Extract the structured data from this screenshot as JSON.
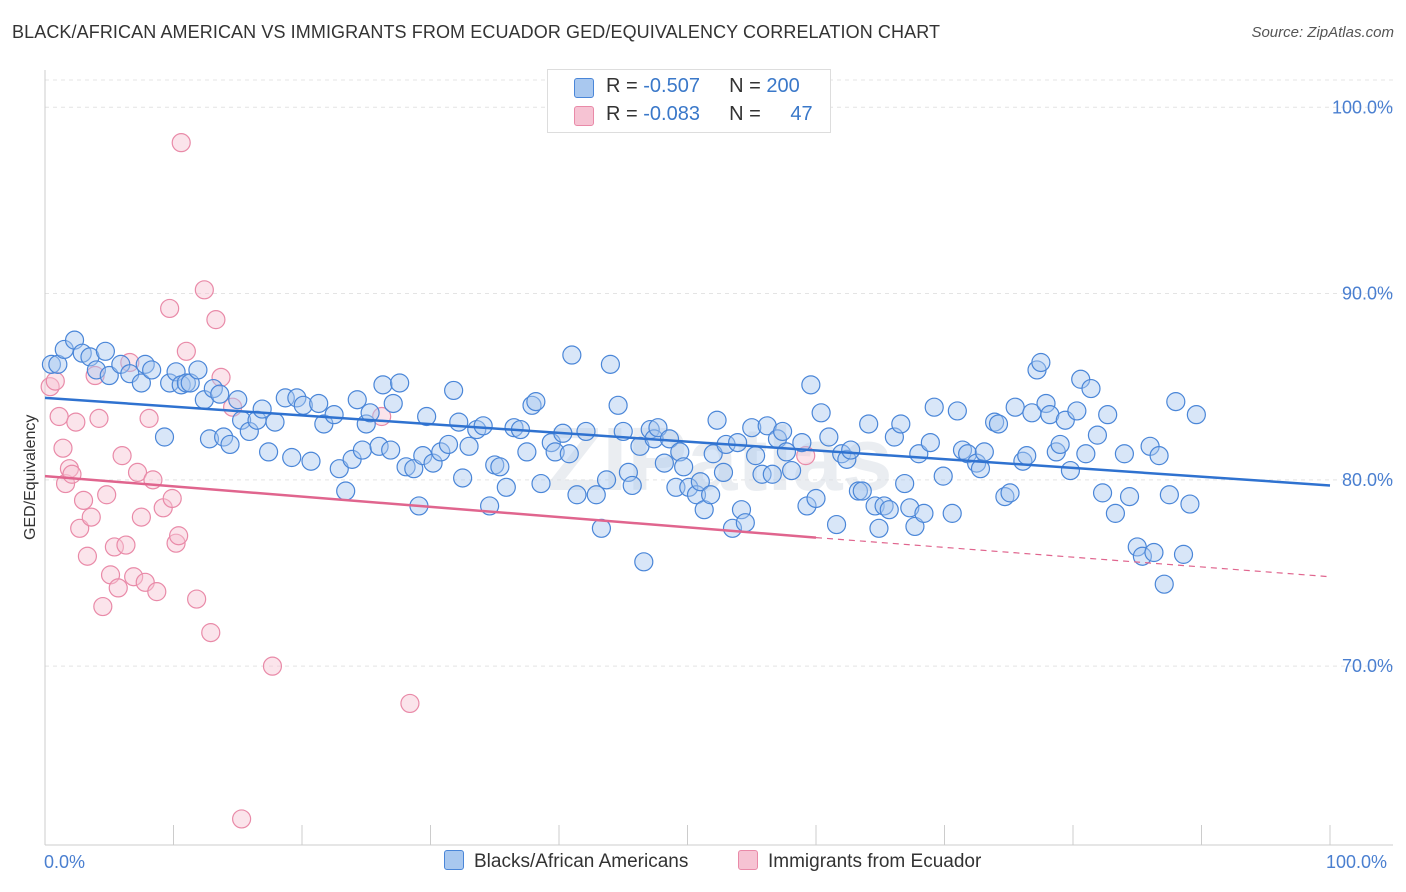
{
  "title": "BLACK/AFRICAN AMERICAN VS IMMIGRANTS FROM ECUADOR GED/EQUIVALENCY CORRELATION CHART",
  "source": "Source: ZipAtlas.com",
  "colors": {
    "blue": "#4a86d8",
    "blue_fill": "#a9c8ef",
    "blue_line": "#2f72d0",
    "pink": "#e98aa8",
    "pink_fill": "#f6c3d3",
    "pink_line": "#e0658e",
    "tick": "#4a7fd0"
  },
  "legend": {
    "rows": [
      {
        "r_label": "R = ",
        "r_value": "-0.507",
        "n_label": "N = ",
        "n_value": "200"
      },
      {
        "r_label": "R = ",
        "r_value": "-0.083",
        "n_label": "N = ",
        "n_value": "47"
      }
    ]
  },
  "bottom_legend": [
    "Blacks/African Americans",
    "Immigrants from Ecuador"
  ],
  "chart_data": {
    "type": "scatter",
    "title": "BLACK/AFRICAN AMERICAN VS IMMIGRANTS FROM ECUADOR GED/EQUIVALENCY CORRELATION CHART",
    "xlabel": "",
    "ylabel": "GED/Equivalency",
    "xlim": [
      0,
      100
    ],
    "ylim": [
      60.4,
      102
    ],
    "x_tick_labels": [
      "0.0%",
      "100.0%"
    ],
    "y_ticks": [
      70,
      80,
      90,
      100
    ],
    "y_tick_labels": [
      "70.0%",
      "80.0%",
      "90.0%",
      "100.0%"
    ],
    "grid": true,
    "legend_position": "top-center",
    "watermark": "ZIPatlas",
    "series": [
      {
        "name": "Blacks/African Americans",
        "r": -0.507,
        "n": 200,
        "trend": {
          "x": [
            0,
            100
          ],
          "y": [
            84.4,
            79.7
          ]
        },
        "points": [
          [
            0.5,
            86.2
          ],
          [
            1.0,
            86.2
          ],
          [
            1.5,
            87.0
          ],
          [
            2.3,
            87.5
          ],
          [
            2.9,
            86.8
          ],
          [
            3.5,
            86.6
          ],
          [
            4.0,
            85.9
          ],
          [
            4.7,
            86.9
          ],
          [
            5.0,
            85.6
          ],
          [
            5.9,
            86.2
          ],
          [
            6.6,
            85.7
          ],
          [
            7.5,
            85.2
          ],
          [
            7.8,
            86.2
          ],
          [
            8.3,
            85.9
          ],
          [
            9.3,
            82.3
          ],
          [
            9.7,
            85.2
          ],
          [
            10.2,
            85.8
          ],
          [
            10.6,
            85.1
          ],
          [
            11.0,
            85.2
          ],
          [
            11.3,
            85.2
          ],
          [
            11.9,
            85.9
          ],
          [
            12.4,
            84.3
          ],
          [
            12.8,
            82.2
          ],
          [
            13.1,
            84.9
          ],
          [
            13.6,
            84.6
          ],
          [
            13.9,
            82.3
          ],
          [
            14.4,
            81.9
          ],
          [
            15.0,
            84.3
          ],
          [
            15.3,
            83.2
          ],
          [
            15.9,
            82.6
          ],
          [
            16.5,
            83.2
          ],
          [
            16.9,
            83.8
          ],
          [
            17.4,
            81.5
          ],
          [
            17.9,
            83.1
          ],
          [
            18.7,
            84.4
          ],
          [
            19.2,
            81.2
          ],
          [
            19.6,
            84.4
          ],
          [
            20.1,
            84.0
          ],
          [
            20.7,
            81.0
          ],
          [
            21.3,
            84.1
          ],
          [
            21.7,
            83.0
          ],
          [
            22.5,
            83.5
          ],
          [
            22.9,
            80.6
          ],
          [
            23.4,
            79.4
          ],
          [
            23.9,
            81.1
          ],
          [
            24.3,
            84.3
          ],
          [
            24.7,
            81.6
          ],
          [
            25.0,
            83.0
          ],
          [
            25.3,
            83.6
          ],
          [
            26.0,
            81.8
          ],
          [
            26.3,
            85.1
          ],
          [
            26.9,
            81.6
          ],
          [
            27.6,
            85.2
          ],
          [
            27.1,
            84.1
          ],
          [
            28.1,
            80.7
          ],
          [
            28.7,
            80.6
          ],
          [
            29.1,
            78.6
          ],
          [
            29.4,
            81.3
          ],
          [
            29.7,
            83.4
          ],
          [
            30.2,
            80.9
          ],
          [
            30.8,
            81.5
          ],
          [
            31.4,
            81.9
          ],
          [
            31.8,
            84.8
          ],
          [
            32.2,
            83.1
          ],
          [
            32.5,
            80.1
          ],
          [
            33.0,
            81.8
          ],
          [
            33.6,
            82.7
          ],
          [
            34.1,
            82.9
          ],
          [
            34.6,
            78.6
          ],
          [
            35.0,
            80.8
          ],
          [
            35.4,
            80.7
          ],
          [
            35.9,
            79.6
          ],
          [
            36.5,
            82.8
          ],
          [
            37.0,
            82.7
          ],
          [
            37.5,
            81.5
          ],
          [
            37.9,
            84.0
          ],
          [
            38.2,
            84.2
          ],
          [
            38.6,
            79.8
          ],
          [
            39.4,
            82.0
          ],
          [
            39.7,
            81.5
          ],
          [
            40.3,
            82.5
          ],
          [
            40.8,
            81.4
          ],
          [
            41.0,
            86.7
          ],
          [
            41.4,
            79.2
          ],
          [
            42.1,
            82.6
          ],
          [
            42.9,
            79.2
          ],
          [
            43.3,
            77.4
          ],
          [
            43.7,
            80.0
          ],
          [
            44.0,
            86.2
          ],
          [
            44.6,
            84.0
          ],
          [
            45.0,
            82.6
          ],
          [
            45.4,
            80.4
          ],
          [
            45.7,
            79.7
          ],
          [
            46.3,
            81.8
          ],
          [
            46.6,
            75.6
          ],
          [
            47.1,
            82.7
          ],
          [
            47.4,
            82.2
          ],
          [
            47.7,
            82.8
          ],
          [
            48.2,
            80.9
          ],
          [
            48.6,
            82.2
          ],
          [
            49.1,
            79.6
          ],
          [
            49.4,
            81.5
          ],
          [
            49.7,
            80.7
          ],
          [
            50.1,
            79.6
          ],
          [
            50.7,
            79.2
          ],
          [
            51.0,
            79.9
          ],
          [
            51.3,
            78.4
          ],
          [
            51.8,
            79.2
          ],
          [
            52.0,
            81.4
          ],
          [
            52.3,
            83.2
          ],
          [
            52.8,
            80.4
          ],
          [
            53.0,
            81.9
          ],
          [
            53.5,
            77.4
          ],
          [
            53.9,
            82.0
          ],
          [
            54.2,
            78.4
          ],
          [
            54.5,
            77.7
          ],
          [
            55.0,
            82.8
          ],
          [
            55.3,
            81.3
          ],
          [
            55.8,
            80.3
          ],
          [
            56.2,
            82.9
          ],
          [
            56.6,
            80.3
          ],
          [
            57.0,
            82.2
          ],
          [
            57.4,
            82.6
          ],
          [
            57.7,
            81.5
          ],
          [
            58.1,
            80.5
          ],
          [
            58.9,
            82.0
          ],
          [
            59.3,
            78.6
          ],
          [
            59.6,
            85.1
          ],
          [
            60.0,
            79.0
          ],
          [
            60.4,
            83.6
          ],
          [
            61.0,
            82.3
          ],
          [
            61.6,
            77.6
          ],
          [
            62.0,
            81.4
          ],
          [
            62.4,
            81.1
          ],
          [
            62.7,
            81.6
          ],
          [
            63.3,
            79.4
          ],
          [
            63.6,
            79.4
          ],
          [
            64.1,
            83.0
          ],
          [
            64.6,
            78.6
          ],
          [
            64.9,
            77.4
          ],
          [
            65.3,
            78.6
          ],
          [
            65.7,
            78.4
          ],
          [
            66.1,
            82.3
          ],
          [
            66.6,
            83.0
          ],
          [
            66.9,
            79.8
          ],
          [
            67.3,
            78.5
          ],
          [
            67.7,
            77.5
          ],
          [
            68.0,
            81.4
          ],
          [
            68.4,
            78.2
          ],
          [
            68.9,
            82.0
          ],
          [
            69.2,
            83.9
          ],
          [
            69.9,
            80.2
          ],
          [
            70.6,
            78.2
          ],
          [
            71.0,
            83.7
          ],
          [
            71.4,
            81.6
          ],
          [
            71.8,
            81.4
          ],
          [
            72.5,
            80.9
          ],
          [
            72.8,
            80.6
          ],
          [
            73.1,
            81.5
          ],
          [
            73.9,
            83.1
          ],
          [
            74.2,
            83.0
          ],
          [
            74.7,
            79.1
          ],
          [
            75.1,
            79.3
          ],
          [
            75.5,
            83.9
          ],
          [
            76.1,
            81.0
          ],
          [
            76.4,
            81.3
          ],
          [
            76.8,
            83.6
          ],
          [
            77.2,
            85.9
          ],
          [
            77.5,
            86.3
          ],
          [
            77.9,
            84.1
          ],
          [
            78.2,
            83.5
          ],
          [
            78.7,
            81.5
          ],
          [
            79.0,
            81.9
          ],
          [
            79.4,
            83.2
          ],
          [
            79.8,
            80.5
          ],
          [
            80.3,
            83.7
          ],
          [
            80.6,
            85.4
          ],
          [
            81.0,
            81.4
          ],
          [
            81.4,
            84.9
          ],
          [
            81.9,
            82.4
          ],
          [
            82.3,
            79.3
          ],
          [
            82.7,
            83.5
          ],
          [
            83.3,
            78.2
          ],
          [
            84.0,
            81.4
          ],
          [
            84.4,
            79.1
          ],
          [
            85.0,
            76.4
          ],
          [
            85.4,
            75.9
          ],
          [
            86.0,
            81.8
          ],
          [
            86.3,
            76.1
          ],
          [
            86.7,
            81.3
          ],
          [
            87.1,
            74.4
          ],
          [
            87.5,
            79.2
          ],
          [
            88.0,
            84.2
          ],
          [
            88.6,
            76.0
          ],
          [
            89.1,
            78.7
          ],
          [
            89.6,
            83.5
          ]
        ]
      },
      {
        "name": "Immigrants from Ecuador",
        "r": -0.083,
        "n": 47,
        "trend": {
          "x": [
            0,
            60
          ],
          "y": [
            80.2,
            76.9
          ]
        },
        "trend_dashed": {
          "x": [
            60,
            100
          ],
          "y": [
            76.9,
            74.8
          ]
        },
        "points": [
          [
            0.4,
            85.0
          ],
          [
            0.8,
            85.3
          ],
          [
            1.1,
            83.4
          ],
          [
            1.4,
            81.7
          ],
          [
            1.6,
            79.8
          ],
          [
            1.9,
            80.6
          ],
          [
            2.1,
            80.3
          ],
          [
            2.4,
            83.1
          ],
          [
            2.7,
            77.4
          ],
          [
            3.0,
            78.9
          ],
          [
            3.3,
            75.9
          ],
          [
            3.6,
            78.0
          ],
          [
            3.9,
            85.6
          ],
          [
            4.2,
            83.3
          ],
          [
            4.5,
            73.2
          ],
          [
            4.8,
            79.2
          ],
          [
            5.1,
            74.9
          ],
          [
            5.4,
            76.4
          ],
          [
            5.7,
            74.2
          ],
          [
            6.0,
            81.3
          ],
          [
            6.3,
            76.5
          ],
          [
            6.6,
            86.3
          ],
          [
            6.9,
            74.8
          ],
          [
            7.2,
            80.4
          ],
          [
            7.5,
            78.0
          ],
          [
            7.8,
            74.5
          ],
          [
            8.1,
            83.3
          ],
          [
            8.4,
            80.0
          ],
          [
            8.7,
            74.0
          ],
          [
            9.2,
            78.5
          ],
          [
            9.7,
            89.2
          ],
          [
            9.9,
            79.0
          ],
          [
            10.2,
            76.6
          ],
          [
            10.4,
            77.0
          ],
          [
            10.6,
            98.1
          ],
          [
            11.0,
            86.9
          ],
          [
            11.8,
            73.6
          ],
          [
            12.4,
            90.2
          ],
          [
            12.9,
            71.8
          ],
          [
            13.3,
            88.6
          ],
          [
            13.7,
            85.5
          ],
          [
            14.6,
            83.9
          ],
          [
            15.3,
            61.8
          ],
          [
            17.7,
            70.0
          ],
          [
            26.2,
            83.4
          ],
          [
            28.4,
            68.0
          ],
          [
            59.2,
            81.3
          ]
        ]
      }
    ]
  }
}
